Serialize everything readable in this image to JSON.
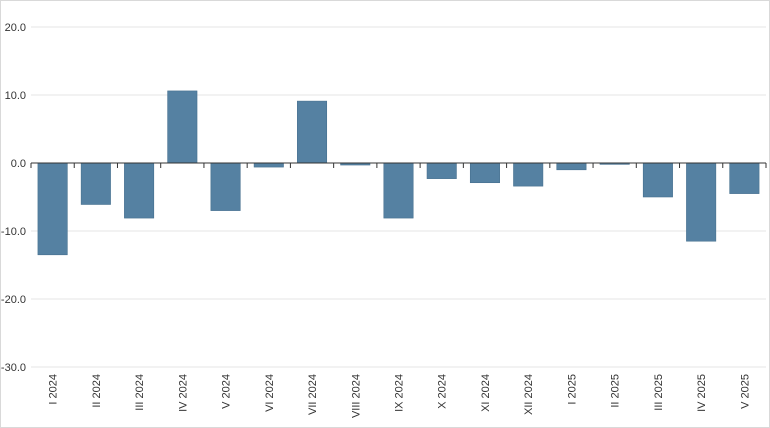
{
  "chart_data": {
    "type": "bar",
    "title": "",
    "xlabel": "",
    "ylabel": "",
    "ylim": [
      -30,
      20
    ],
    "yticks": [
      20,
      10,
      0,
      -10,
      -20,
      -30
    ],
    "ytick_labels": [
      "20.0",
      "10.0",
      "0.0",
      "-10.0",
      "-20.0",
      "-30.0"
    ],
    "grid": true,
    "legend": "none",
    "bar_color": "#5581a2",
    "categories": [
      "I 2024",
      "II 2024",
      "III 2024",
      "IV 2024",
      "V 2024",
      "VI 2024",
      "VII 2024",
      "VIII 2024",
      "IX 2024",
      "X 2024",
      "XI 2024",
      "XII 2024",
      "I 2025",
      "II 2025",
      "III 2025",
      "IV 2025",
      "V 2025"
    ],
    "values": [
      -13.5,
      -6.1,
      -8.1,
      10.6,
      -7.0,
      -0.6,
      9.1,
      -0.3,
      -8.1,
      -2.3,
      -2.9,
      -3.4,
      -1.0,
      -0.2,
      -5.0,
      -11.5,
      -4.5
    ]
  }
}
